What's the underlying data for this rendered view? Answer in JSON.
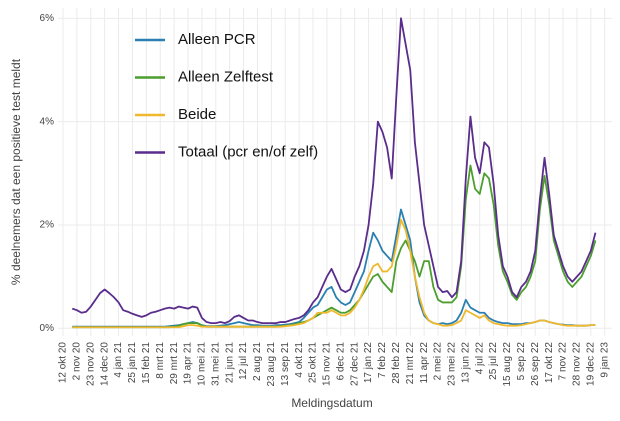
{
  "chart_data": {
    "type": "line",
    "y_label": "% deelnemers dat een positieve test meldt",
    "x_label": "Meldingsdatum",
    "categories": [
      "12 okt 20",
      null,
      null,
      "2 nov 20",
      null,
      null,
      "23 nov 20",
      null,
      null,
      "14 dec 20",
      null,
      null,
      "4 jan 21",
      null,
      null,
      "25 jan 21",
      null,
      null,
      "15 feb 21",
      null,
      null,
      "8 mrt 21",
      null,
      null,
      "29 mrt 21",
      null,
      null,
      "19 apr 21",
      null,
      null,
      "10 mei 21",
      null,
      null,
      "31 mei 21",
      null,
      null,
      "21 jun 21",
      null,
      null,
      "12 jul 21",
      null,
      null,
      "2 aug 21",
      null,
      null,
      "23 aug 21",
      null,
      null,
      "13 sep 21",
      null,
      null,
      "4 okt 21",
      null,
      null,
      "25 okt 21",
      null,
      null,
      "15 nov 21",
      null,
      null,
      "6 dec 21",
      null,
      null,
      "27 dec 21",
      null,
      null,
      "17 jan 22",
      null,
      null,
      "7 feb 22",
      null,
      null,
      "28 feb 22",
      null,
      null,
      "21 mrt 22",
      null,
      null,
      "11 apr 22",
      null,
      null,
      "2 mei 22",
      null,
      null,
      "23 mei 22",
      null,
      null,
      "13 jun 22",
      null,
      null,
      "4 jul 22",
      null,
      null,
      "25 jul 22",
      null,
      null,
      "15 aug 22",
      null,
      null,
      "5 sep 22",
      null,
      null,
      "26 sep 22",
      null,
      null,
      "17 okt 22",
      null,
      null,
      "7 nov 22",
      null,
      null,
      "28 nov 22",
      null,
      null,
      "19 dec 22",
      null,
      null,
      "9 jan 23"
    ],
    "series": [
      {
        "name": "Alleen PCR",
        "color": "#2a80b0",
        "values": [
          null,
          null,
          0.03,
          0.03,
          0.03,
          0.03,
          0.03,
          0.03,
          0.03,
          0.03,
          0.03,
          0.03,
          0.03,
          0.03,
          0.03,
          0.03,
          0.03,
          0.03,
          0.03,
          0.03,
          0.03,
          0.03,
          0.03,
          0.04,
          0.05,
          0.06,
          0.08,
          0.1,
          0.12,
          0.1,
          0.06,
          0.04,
          0.04,
          0.04,
          0.05,
          0.06,
          0.08,
          0.1,
          0.12,
          0.1,
          0.08,
          0.06,
          0.06,
          0.05,
          0.05,
          0.05,
          0.06,
          0.06,
          0.07,
          0.08,
          0.1,
          0.12,
          0.2,
          0.3,
          0.4,
          0.45,
          0.6,
          0.75,
          0.8,
          0.6,
          0.5,
          0.45,
          0.5,
          0.7,
          0.9,
          1.1,
          1.5,
          1.85,
          1.7,
          1.5,
          1.4,
          1.3,
          1.8,
          2.3,
          2.0,
          1.7,
          1.0,
          0.5,
          0.25,
          0.15,
          0.1,
          0.08,
          0.1,
          0.08,
          0.1,
          0.15,
          0.3,
          0.55,
          0.4,
          0.35,
          0.3,
          0.3,
          0.2,
          0.15,
          0.12,
          0.1,
          0.1,
          0.08,
          0.08,
          0.08,
          0.1,
          0.1,
          0.12,
          0.15,
          0.15,
          0.12,
          0.1,
          0.08,
          0.07,
          0.06,
          0.06,
          0.05,
          0.05,
          0.05,
          0.06,
          0.06,
          null,
          null
        ]
      },
      {
        "name": "Alleen Zelftest",
        "color": "#4c9e2f",
        "values": [
          null,
          null,
          0.02,
          0.02,
          0.02,
          0.02,
          0.02,
          0.02,
          0.02,
          0.02,
          0.02,
          0.02,
          0.02,
          0.02,
          0.02,
          0.02,
          0.02,
          0.02,
          0.02,
          0.02,
          0.02,
          0.02,
          0.02,
          0.02,
          0.03,
          0.05,
          0.08,
          0.1,
          0.1,
          0.1,
          0.05,
          0.03,
          0.03,
          0.03,
          0.03,
          0.03,
          0.03,
          0.03,
          0.03,
          0.03,
          0.03,
          0.03,
          0.03,
          0.03,
          0.03,
          0.03,
          0.03,
          0.04,
          0.05,
          0.06,
          0.08,
          0.1,
          0.12,
          0.15,
          0.2,
          0.25,
          0.3,
          0.35,
          0.4,
          0.35,
          0.3,
          0.3,
          0.35,
          0.45,
          0.55,
          0.7,
          0.85,
          1.0,
          1.05,
          0.9,
          0.8,
          0.7,
          1.3,
          1.55,
          1.7,
          1.5,
          1.3,
          1.0,
          1.3,
          1.3,
          0.8,
          0.55,
          0.5,
          0.5,
          0.5,
          0.6,
          1.2,
          2.5,
          3.15,
          2.7,
          2.6,
          3.0,
          2.9,
          2.4,
          1.6,
          1.1,
          0.9,
          0.65,
          0.55,
          0.7,
          0.8,
          1.0,
          1.3,
          2.3,
          2.95,
          2.4,
          1.7,
          1.4,
          1.1,
          0.9,
          0.8,
          0.9,
          1.0,
          1.2,
          1.4,
          1.7,
          null,
          null
        ]
      },
      {
        "name": "Beide",
        "color": "#f0b82c",
        "values": [
          null,
          null,
          0.02,
          0.02,
          0.02,
          0.02,
          0.02,
          0.02,
          0.02,
          0.02,
          0.02,
          0.02,
          0.02,
          0.02,
          0.02,
          0.02,
          0.02,
          0.02,
          0.02,
          0.02,
          0.02,
          0.02,
          0.02,
          0.02,
          0.02,
          0.02,
          0.04,
          0.06,
          0.06,
          0.05,
          0.03,
          0.03,
          0.03,
          0.03,
          0.03,
          0.03,
          0.03,
          0.03,
          0.03,
          0.03,
          0.03,
          0.03,
          0.03,
          0.03,
          0.03,
          0.03,
          0.03,
          0.03,
          0.04,
          0.05,
          0.06,
          0.08,
          0.1,
          0.15,
          0.2,
          0.3,
          0.3,
          0.3,
          0.35,
          0.3,
          0.25,
          0.25,
          0.3,
          0.4,
          0.55,
          0.75,
          1.0,
          1.2,
          1.25,
          1.1,
          1.1,
          1.2,
          1.6,
          2.1,
          1.9,
          1.5,
          1.0,
          0.6,
          0.3,
          0.15,
          0.1,
          0.08,
          0.05,
          0.05,
          0.06,
          0.1,
          0.15,
          0.35,
          0.3,
          0.25,
          0.2,
          0.25,
          0.15,
          0.1,
          0.08,
          0.06,
          0.05,
          0.05,
          0.05,
          0.06,
          0.08,
          0.1,
          0.12,
          0.15,
          0.15,
          0.12,
          0.1,
          0.08,
          0.06,
          0.05,
          0.05,
          0.05,
          0.05,
          0.05,
          0.06,
          0.06,
          null,
          null
        ]
      },
      {
        "name": "Totaal (pcr en/of zelf)",
        "color": "#5a2d8c",
        "values": [
          null,
          null,
          0.38,
          0.35,
          0.3,
          0.32,
          0.42,
          0.55,
          0.68,
          0.75,
          0.68,
          0.6,
          0.5,
          0.35,
          0.32,
          0.28,
          0.25,
          0.22,
          0.25,
          0.3,
          0.32,
          0.35,
          0.38,
          0.4,
          0.38,
          0.42,
          0.4,
          0.38,
          0.42,
          0.4,
          0.2,
          0.12,
          0.1,
          0.1,
          0.12,
          0.1,
          0.14,
          0.22,
          0.25,
          0.2,
          0.15,
          0.15,
          0.12,
          0.1,
          0.1,
          0.1,
          0.1,
          0.12,
          0.12,
          0.15,
          0.18,
          0.2,
          0.25,
          0.35,
          0.5,
          0.6,
          0.8,
          1.0,
          1.15,
          0.95,
          0.75,
          0.7,
          0.75,
          1.0,
          1.2,
          1.5,
          2.0,
          2.8,
          4.0,
          3.8,
          3.5,
          2.9,
          4.5,
          6.0,
          5.5,
          5.0,
          3.6,
          2.8,
          2.0,
          1.6,
          1.2,
          0.8,
          0.7,
          0.72,
          0.6,
          0.7,
          1.3,
          2.9,
          4.1,
          3.3,
          3.0,
          3.6,
          3.5,
          2.8,
          1.8,
          1.2,
          1.0,
          0.7,
          0.6,
          0.8,
          0.9,
          1.1,
          1.5,
          2.5,
          3.3,
          2.6,
          1.8,
          1.5,
          1.2,
          1.0,
          0.9,
          1.0,
          1.1,
          1.3,
          1.5,
          1.85,
          null,
          null
        ]
      }
    ],
    "ylim": [
      -0.15,
      6.2
    ],
    "yticks": [
      {
        "value": 0,
        "label": "0%"
      },
      {
        "value": 2,
        "label": "2%"
      },
      {
        "value": 4,
        "label": "4%"
      },
      {
        "value": 6,
        "label": "6%"
      }
    ],
    "grid": true,
    "legend": "upper left"
  }
}
